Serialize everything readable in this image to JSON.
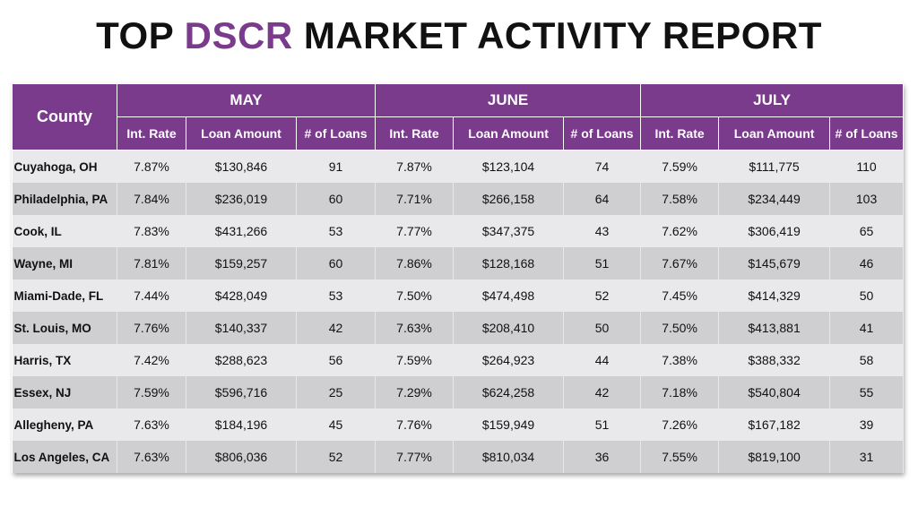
{
  "title": {
    "part1": "TOP",
    "accent": "DSCR",
    "part2": "MARKET ACTIVITY REPORT"
  },
  "colors": {
    "header": "#7b3b8c",
    "row_light": "#e9e9eb",
    "row_dark": "#cfcfd2"
  },
  "table": {
    "county_header": "County",
    "months": [
      "MAY",
      "JUNE",
      "JULY"
    ],
    "subheaders": [
      "Int. Rate",
      "Loan Amount",
      "# of Loans"
    ],
    "rows": [
      {
        "county": "Cuyahoga, OH",
        "values": [
          "7.87%",
          "$130,846",
          "91",
          "7.87%",
          "$123,104",
          "74",
          "7.59%",
          "$111,775",
          "110"
        ]
      },
      {
        "county": "Philadelphia, PA",
        "values": [
          "7.84%",
          "$236,019",
          "60",
          "7.71%",
          "$266,158",
          "64",
          "7.58%",
          "$234,449",
          "103"
        ]
      },
      {
        "county": "Cook, IL",
        "values": [
          "7.83%",
          "$431,266",
          "53",
          "7.77%",
          "$347,375",
          "43",
          "7.62%",
          "$306,419",
          "65"
        ]
      },
      {
        "county": "Wayne, MI",
        "values": [
          "7.81%",
          "$159,257",
          "60",
          "7.86%",
          "$128,168",
          "51",
          "7.67%",
          "$145,679",
          "46"
        ]
      },
      {
        "county": "Miami-Dade, FL",
        "values": [
          "7.44%",
          "$428,049",
          "53",
          "7.50%",
          "$474,498",
          "52",
          "7.45%",
          "$414,329",
          "50"
        ]
      },
      {
        "county": "St. Louis, MO",
        "values": [
          "7.76%",
          "$140,337",
          "42",
          "7.63%",
          "$208,410",
          "50",
          "7.50%",
          "$413,881",
          "41"
        ]
      },
      {
        "county": "Harris, TX",
        "values": [
          "7.42%",
          "$288,623",
          "56",
          "7.59%",
          "$264,923",
          "44",
          "7.38%",
          "$388,332",
          "58"
        ]
      },
      {
        "county": "Essex, NJ",
        "values": [
          "7.59%",
          "$596,716",
          "25",
          "7.29%",
          "$624,258",
          "42",
          "7.18%",
          "$540,804",
          "55"
        ]
      },
      {
        "county": "Allegheny, PA",
        "values": [
          "7.63%",
          "$184,196",
          "45",
          "7.76%",
          "$159,949",
          "51",
          "7.26%",
          "$167,182",
          "39"
        ]
      },
      {
        "county": "Los Angeles, CA",
        "values": [
          "7.63%",
          "$806,036",
          "52",
          "7.77%",
          "$810,034",
          "36",
          "7.55%",
          "$819,100",
          "31"
        ]
      }
    ]
  }
}
